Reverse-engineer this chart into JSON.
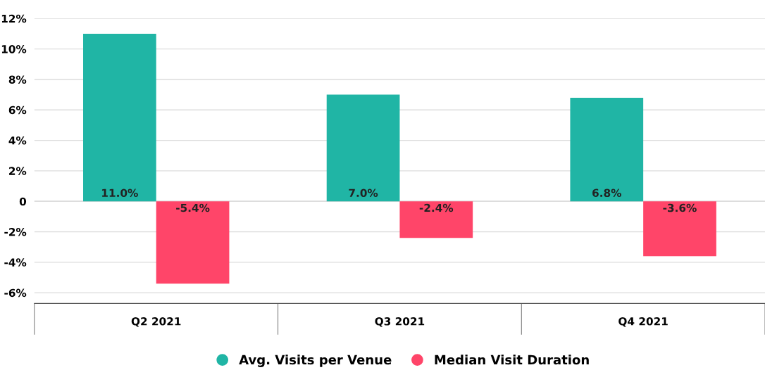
{
  "chart_data": {
    "type": "bar",
    "categories": [
      "Q2 2021",
      "Q3 2021",
      "Q4 2021"
    ],
    "series": [
      {
        "name": "Avg. Visits per Venue",
        "color": "#20b5a5",
        "values": [
          11.0,
          7.0,
          6.8
        ],
        "value_labels": [
          "11.0%",
          "7.0%",
          "6.8%"
        ]
      },
      {
        "name": "Median Visit Duration",
        "color": "#ff4569",
        "values": [
          -5.4,
          -2.4,
          -3.6
        ],
        "value_labels": [
          "-5.4%",
          "-2.4%",
          "-3.6%"
        ]
      }
    ],
    "ylim": [
      -6.7,
      12
    ],
    "yticks": [
      {
        "value": -6,
        "label": "-6%"
      },
      {
        "value": -4,
        "label": "-4%"
      },
      {
        "value": -2,
        "label": "-2%"
      },
      0,
      {
        "value": 2,
        "label": "2%"
      },
      {
        "value": 4,
        "label": "4%"
      },
      {
        "value": 6,
        "label": "6%"
      },
      {
        "value": 8,
        "label": "8%"
      },
      {
        "value": 10,
        "label": "10%"
      },
      {
        "value": 12,
        "label": "12%"
      }
    ],
    "grid": "y",
    "legend": "bottom"
  }
}
